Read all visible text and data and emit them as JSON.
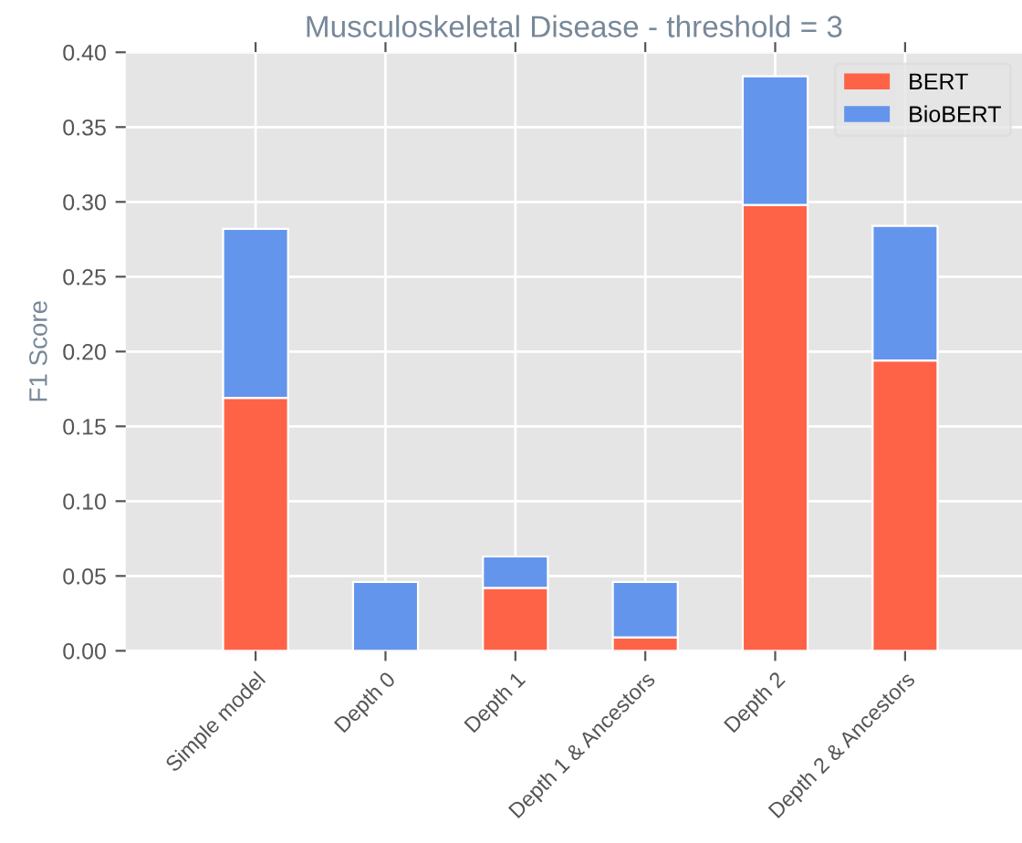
{
  "chart_data": {
    "type": "bar",
    "title": "Musculoskeletal Disease - threshold = 3",
    "ylabel": "F1 Score",
    "categories": [
      "Simple model",
      "Depth 0",
      "Depth 1",
      "Depth 1 & Ancestors",
      "Depth 2",
      "Depth 2 & Ancestors"
    ],
    "series": [
      {
        "name": "BERT",
        "color": "#ff6347",
        "values": [
          0.169,
          0,
          0.042,
          0.009,
          0.298,
          0.194
        ]
      },
      {
        "name": "BioBERT",
        "color": "#6495ed",
        "values": [
          0.113,
          0.046,
          0.021,
          0.037,
          0.086,
          0.09
        ]
      }
    ],
    "stacked": true,
    "ylim": [
      0,
      0.4
    ],
    "yticks": [
      {
        "value": 0,
        "label": "0.00"
      },
      {
        "value": 0.05,
        "label": "0.05"
      },
      {
        "value": 0.1,
        "label": "0.10"
      },
      {
        "value": 0.15,
        "label": "0.15"
      },
      {
        "value": 0.2,
        "label": "0.20"
      },
      {
        "value": 0.25,
        "label": "0.25"
      },
      {
        "value": 0.3,
        "label": "0.30"
      },
      {
        "value": 0.35,
        "label": "0.35"
      },
      {
        "value": 0.4,
        "label": "0.40"
      }
    ],
    "grid": true,
    "legend": "top right"
  }
}
